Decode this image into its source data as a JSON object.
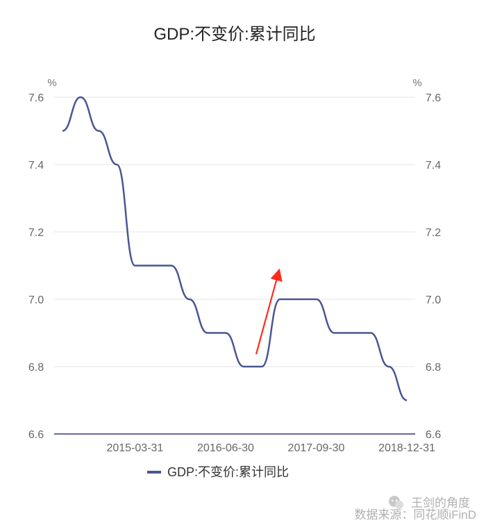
{
  "chart_data": {
    "type": "line",
    "title": "GDP:不变价:累计同比",
    "unit_left": "%",
    "unit_right": "%",
    "ylim": [
      6.6,
      7.6
    ],
    "yticks": [
      "6.6",
      "6.8",
      "7.0",
      "7.2",
      "7.4",
      "7.6"
    ],
    "xticks": [
      "2015-03-31",
      "2016-06-30",
      "2017-09-30",
      "2018-12-31"
    ],
    "grid": true,
    "legend": "bottom",
    "series": [
      {
        "name": "GDP:不变价:累计同比",
        "color": "#4a5594",
        "x": [
          "2014-03-31",
          "2014-06-30",
          "2014-09-30",
          "2014-12-31",
          "2015-03-31",
          "2015-06-30",
          "2015-09-30",
          "2015-12-31",
          "2016-03-31",
          "2016-06-30",
          "2016-09-30",
          "2016-12-31",
          "2017-03-31",
          "2017-06-30",
          "2017-09-30",
          "2017-12-31",
          "2018-03-31",
          "2018-06-30",
          "2018-09-30",
          "2018-12-31"
        ],
        "values": [
          7.5,
          7.6,
          7.5,
          7.4,
          7.1,
          7.1,
          7.1,
          7.0,
          6.9,
          6.9,
          6.8,
          6.8,
          7.0,
          7.0,
          7.0,
          6.9,
          6.9,
          6.9,
          6.8,
          6.7
        ]
      }
    ],
    "annotation": {
      "type": "arrow",
      "color": "#ff2a1a"
    }
  },
  "watermark": {
    "account": "王剑的角度",
    "source": "数据来源：同花顺iFinD",
    "icon": "wechat-icon"
  }
}
